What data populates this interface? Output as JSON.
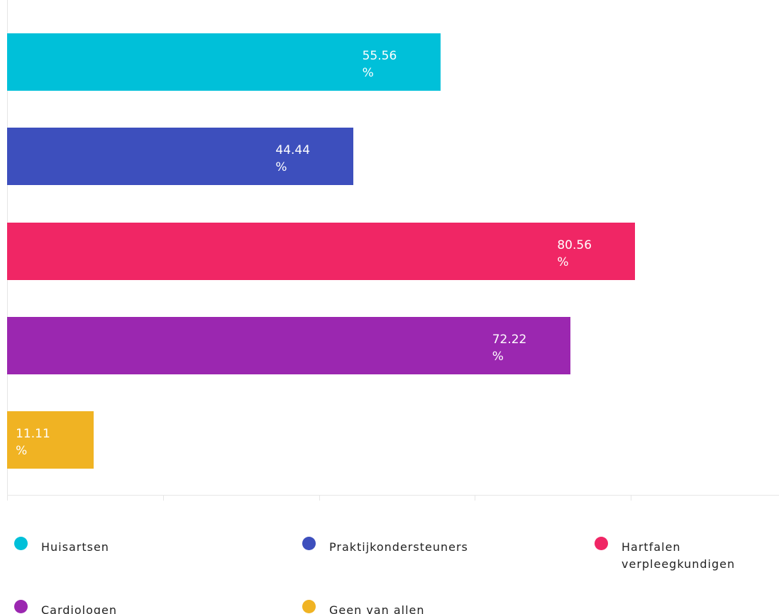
{
  "chart_data": {
    "type": "bar",
    "orientation": "horizontal",
    "categories": [
      "Huisartsen",
      "Praktijkondersteuners",
      "Hartfalen verpleegkundigen",
      "Cardiologen",
      "Geen van allen"
    ],
    "values": [
      55.56,
      44.44,
      80.56,
      72.22,
      11.11
    ],
    "value_labels": [
      "55.56 %",
      "44.44 %",
      "80.56 %",
      "72.22 %",
      "11.11 %"
    ],
    "colors": [
      "#00c0d9",
      "#3d4fbd",
      "#f02665",
      "#9b27b0",
      "#f0b323"
    ],
    "xlim": [
      0,
      99
    ],
    "xticks": [
      0,
      20,
      40,
      60,
      80
    ],
    "legend": "bottom"
  }
}
